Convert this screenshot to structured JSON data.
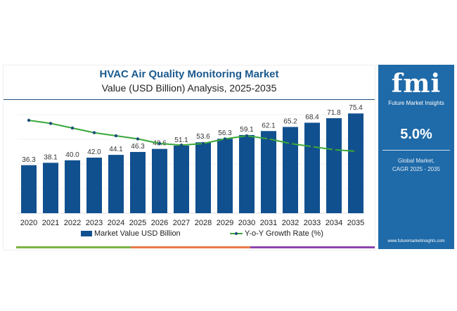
{
  "chart_data": {
    "type": "bar",
    "title": "HVAC Air Quality Monitoring Market",
    "subtitle": "Value (USD Billion) Analysis, 2025-2035",
    "categories": [
      "2020",
      "2021",
      "2022",
      "2023",
      "2024",
      "2025",
      "2026",
      "2027",
      "2028",
      "2029",
      "2030",
      "2031",
      "2032",
      "2033",
      "2034",
      "2035"
    ],
    "series": [
      {
        "name": "Market Value USD Billion",
        "type": "bar",
        "color": "#11508f",
        "values": [
          36.3,
          38.1,
          40.0,
          42.0,
          44.1,
          46.3,
          48.6,
          51.1,
          53.6,
          56.3,
          59.1,
          62.1,
          65.2,
          68.4,
          71.8,
          75.4
        ]
      },
      {
        "name": "Y-o-Y Growth Rate (%)",
        "type": "line",
        "color": "#3aa83a",
        "values": [
          5.9,
          5.7,
          5.4,
          5.1,
          4.9,
          4.7,
          4.4,
          4.3,
          4.4,
          4.7,
          4.9,
          4.7,
          4.4,
          4.2,
          4.0,
          3.9
        ]
      }
    ],
    "ylim": [
      0,
      80
    ],
    "grid": true,
    "legend": "bottom"
  },
  "panel": {
    "logo": "fmi",
    "brand": "Future Market Insights",
    "cagr": "5.0%",
    "label1": "Global Market,",
    "label2": "CAGR 2025 - 2035",
    "url": "www.futuremarketinsights.com"
  },
  "colors": {
    "strip": [
      "#7cb342",
      "#e8794a",
      "#8e44ad"
    ],
    "panel": "#1f6aa8"
  }
}
